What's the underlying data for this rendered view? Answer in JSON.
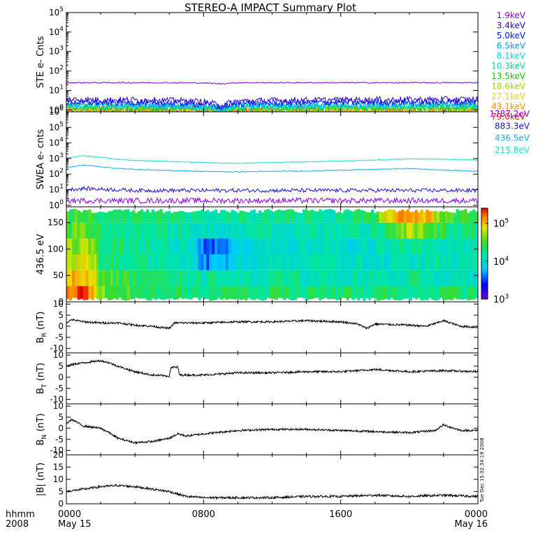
{
  "title": "STEREO-A IMPACT Summary Plot",
  "time_axis": {
    "hhmm_label": "hhmm",
    "year_label": "2008",
    "ticks": [
      {
        "t_hours": 0,
        "label": "0000",
        "date": "May 15"
      },
      {
        "t_hours": 8,
        "label": "0800",
        "date": ""
      },
      {
        "t_hours": 16,
        "label": "1600",
        "date": ""
      },
      {
        "t_hours": 24,
        "label": "0000",
        "date": "May 16"
      }
    ],
    "range_hours": [
      0,
      24
    ]
  },
  "timestamp": "Tue Dec 15 02:34:19 2008",
  "colorbar": {
    "scale": "log",
    "range": [
      1000,
      250000
    ],
    "ticks": [
      {
        "value": 100000,
        "base": "10",
        "exp": "5"
      },
      {
        "value": 10000,
        "base": "10",
        "exp": "4"
      },
      {
        "value": 1000,
        "base": "10",
        "exp": "3"
      }
    ]
  },
  "chart_data": [
    {
      "id": "ste",
      "type": "line",
      "ylabel": "STE e- Cnts",
      "yscale": "log",
      "ylim": [
        0.8,
        100000
      ],
      "yticks": [
        {
          "value": 1,
          "base": "10",
          "exp": "0"
        },
        {
          "value": 10,
          "base": "10",
          "exp": "1"
        },
        {
          "value": 100,
          "base": "10",
          "exp": "2"
        },
        {
          "value": 1000,
          "base": "10",
          "exp": "3"
        },
        {
          "value": 10000,
          "base": "10",
          "exp": "4"
        },
        {
          "value": 100000,
          "base": "10",
          "exp": "5"
        }
      ],
      "x_hours": [
        0,
        2,
        4,
        6,
        8,
        9,
        10,
        12,
        16,
        20,
        24
      ],
      "series": [
        {
          "name": "1.9keV",
          "color": "#7a00d6",
          "values": [
            25,
            25,
            25,
            25,
            24,
            22,
            25,
            25,
            25,
            25,
            25
          ]
        },
        {
          "name": "3.4keV",
          "color": "#2a00c8",
          "values": [
            3.4,
            3.2,
            3.2,
            3.0,
            2.6,
            1.6,
            2.8,
            3.0,
            3.2,
            3.3,
            3.4
          ]
        },
        {
          "name": "5.0keV",
          "color": "#0018ff",
          "values": [
            2.6,
            2.4,
            2.4,
            2.3,
            2.0,
            1.4,
            2.2,
            2.3,
            2.5,
            2.5,
            2.6
          ]
        },
        {
          "name": "6.5keV",
          "color": "#00a0ff",
          "values": [
            2.0,
            1.9,
            1.9,
            1.8,
            1.6,
            1.2,
            1.7,
            1.8,
            1.9,
            2.0,
            2.0
          ]
        },
        {
          "name": "8.1keV",
          "color": "#00d8e8",
          "values": [
            1.7,
            1.6,
            1.6,
            1.5,
            1.4,
            1.1,
            1.5,
            1.5,
            1.6,
            1.6,
            1.7
          ]
        },
        {
          "name": "10.3keV",
          "color": "#00d890",
          "values": [
            1.5,
            1.4,
            1.4,
            1.4,
            1.3,
            1.0,
            1.3,
            1.4,
            1.4,
            1.4,
            1.5
          ]
        },
        {
          "name": "13.5keV",
          "color": "#10c800",
          "values": [
            1.3,
            1.3,
            1.3,
            1.2,
            1.2,
            1.0,
            1.2,
            1.2,
            1.3,
            1.3,
            1.3
          ]
        },
        {
          "name": "18.6keV",
          "color": "#a0d800",
          "values": [
            1.2,
            1.2,
            1.2,
            1.1,
            1.1,
            1.0,
            1.1,
            1.1,
            1.2,
            1.2,
            1.2
          ]
        },
        {
          "name": "27.1keV",
          "color": "#f0d000",
          "values": [
            1.1,
            1.1,
            1.1,
            1.05,
            1.0,
            0.95,
            1.0,
            1.05,
            1.1,
            1.1,
            1.1
          ]
        },
        {
          "name": "43.1keV",
          "color": "#f08c00",
          "values": [
            1.0,
            1.0,
            1.0,
            1.0,
            0.95,
            0.9,
            0.95,
            1.0,
            1.0,
            1.0,
            1.0
          ]
        },
        {
          "name": "79.0keV",
          "color": "#e01a00",
          "values": [
            0.95,
            0.95,
            0.95,
            0.95,
            0.9,
            0.88,
            0.9,
            0.95,
            0.95,
            0.95,
            0.95
          ]
        }
      ]
    },
    {
      "id": "swea",
      "type": "line",
      "ylabel": "SWEA e- cnts",
      "yscale": "log",
      "ylim": [
        0.8,
        1000000
      ],
      "yticks": [
        {
          "value": 1,
          "base": "10",
          "exp": "0"
        },
        {
          "value": 10,
          "base": "10",
          "exp": "1"
        },
        {
          "value": 100,
          "base": "10",
          "exp": "2"
        },
        {
          "value": 1000,
          "base": "10",
          "exp": "3"
        },
        {
          "value": 10000,
          "base": "10",
          "exp": "4"
        },
        {
          "value": 100000,
          "base": "10",
          "exp": "5"
        },
        {
          "value": 1000000,
          "base": "10",
          "exp": "6"
        }
      ],
      "x_hours": [
        0,
        1,
        2,
        3,
        4,
        6,
        8,
        10,
        12,
        14,
        16,
        18,
        20,
        22,
        24
      ],
      "series": [
        {
          "name": "1787.2eV",
          "color": "#8a00e0",
          "values": [
            2,
            2,
            2,
            2,
            2,
            2,
            2,
            2,
            2,
            2,
            2,
            2,
            2,
            2,
            2
          ]
        },
        {
          "name": "883.3eV",
          "color": "#1a10d8",
          "values": [
            10,
            12,
            11,
            10,
            9,
            9,
            9,
            9,
            9,
            9,
            9,
            9,
            9,
            9,
            9
          ]
        },
        {
          "name": "436.5eV",
          "color": "#10a8ff",
          "values": [
            250,
            380,
            300,
            230,
            200,
            170,
            150,
            140,
            150,
            160,
            180,
            200,
            230,
            180,
            150
          ]
        },
        {
          "name": "215.8eV",
          "color": "#10e0c8",
          "values": [
            1100,
            1500,
            1200,
            900,
            750,
            650,
            550,
            500,
            560,
            600,
            700,
            800,
            950,
            900,
            800
          ]
        }
      ]
    },
    {
      "id": "pad",
      "type": "heatmap",
      "ylabel": "436.5 eV",
      "ylim": [
        0,
        180
      ],
      "yticks": [
        0,
        50,
        100,
        150
      ],
      "x_hours": [
        0,
        1,
        2,
        3,
        4,
        5,
        6,
        7,
        8,
        9,
        10,
        11,
        12,
        13,
        14,
        15,
        16,
        17,
        18,
        19,
        20,
        21,
        22,
        23,
        24
      ],
      "y_deg": [
        15,
        45,
        75,
        105,
        135,
        165
      ],
      "values": [
        [
          140000,
          200000,
          40000,
          30000,
          30000,
          25000,
          22000,
          20000,
          18000,
          20000,
          22000,
          20000,
          20000,
          20000,
          20000,
          20000,
          20000,
          20000,
          20000,
          20000,
          20000,
          20000,
          20000,
          20000,
          20000
        ],
        [
          90000,
          120000,
          35000,
          25000,
          25000,
          20000,
          20000,
          18000,
          15000,
          15000,
          15000,
          14000,
          14000,
          15000,
          14000,
          14000,
          13000,
          13000,
          13000,
          14000,
          15000,
          15000,
          14000,
          14000,
          14000
        ],
        [
          60000,
          80000,
          25000,
          20000,
          20000,
          15000,
          15000,
          12000,
          4000,
          5000,
          8000,
          10000,
          12000,
          12000,
          12000,
          11000,
          11000,
          11000,
          11000,
          12000,
          13000,
          14000,
          13000,
          13000,
          13000
        ],
        [
          40000,
          50000,
          22000,
          18000,
          18000,
          15000,
          14000,
          12000,
          3500,
          4000,
          7000,
          9000,
          11000,
          11000,
          11000,
          11000,
          11000,
          11000,
          11000,
          13000,
          15000,
          16000,
          14000,
          14000,
          14000
        ],
        [
          30000,
          35000,
          20000,
          18000,
          18000,
          16000,
          15000,
          14000,
          12000,
          12000,
          12000,
          13000,
          13000,
          13000,
          13000,
          13000,
          13000,
          14000,
          15000,
          30000,
          50000,
          40000,
          20000,
          18000,
          18000
        ],
        [
          28000,
          30000,
          22000,
          20000,
          20000,
          18000,
          18000,
          17000,
          16000,
          16000,
          16000,
          16000,
          16000,
          16000,
          16000,
          16000,
          16000,
          18000,
          25000,
          90000,
          150000,
          100000,
          30000,
          25000,
          25000
        ]
      ]
    },
    {
      "id": "br",
      "type": "line",
      "ylabel_main": "B",
      "ylabel_sub": "R",
      "ylabel_unit": " (nT)",
      "ylim": [
        -12,
        11
      ],
      "yticks": [
        -10,
        -5,
        0,
        5,
        10
      ],
      "x_hours": [
        0,
        0.3,
        1,
        2,
        3,
        4,
        5,
        6,
        6.3,
        7,
        8,
        10,
        12,
        14,
        16,
        17,
        17.5,
        18,
        20,
        21,
        22,
        23,
        24
      ],
      "values": [
        1.5,
        3,
        2,
        1.5,
        1.5,
        0.5,
        0,
        -1,
        1.5,
        1.5,
        1.5,
        2,
        2,
        2.5,
        2,
        1,
        -1,
        1,
        0.5,
        0,
        2.5,
        0,
        -0.5
      ]
    },
    {
      "id": "bt",
      "type": "line",
      "ylabel_main": "B",
      "ylabel_sub": "T",
      "ylabel_unit": " (nT)",
      "ylim": [
        -12,
        11
      ],
      "yticks": [
        -10,
        -5,
        0,
        5,
        10
      ],
      "x_hours": [
        0,
        0.5,
        1,
        2,
        2.5,
        3,
        4,
        5,
        6,
        6.1,
        6.5,
        6.6,
        8,
        9,
        10,
        12,
        14,
        16,
        18,
        20,
        22,
        24
      ],
      "values": [
        5,
        6,
        6.5,
        7.5,
        6.5,
        5,
        2.5,
        1,
        0.5,
        4.5,
        4.5,
        1,
        1,
        1.5,
        2,
        2,
        2.5,
        2.5,
        3.5,
        2.5,
        3,
        2.5
      ]
    },
    {
      "id": "bn",
      "type": "line",
      "ylabel_main": "B",
      "ylabel_sub": "N",
      "ylabel_unit": " (nT)",
      "ylim": [
        -12,
        11
      ],
      "yticks": [
        -10,
        -5,
        0,
        5,
        10
      ],
      "x_hours": [
        0,
        0.3,
        1,
        2,
        2.5,
        3,
        4,
        5,
        6,
        6.5,
        7,
        8,
        10,
        12,
        14,
        16,
        18,
        20,
        21.5,
        22,
        23,
        24
      ],
      "values": [
        2,
        4,
        1,
        0,
        -2,
        -4.5,
        -6.5,
        -6,
        -4.5,
        -2.5,
        -3.5,
        -2.5,
        -1,
        -0.5,
        -0.5,
        -1,
        -1.5,
        -2,
        -1,
        1.5,
        -1,
        -1
      ]
    },
    {
      "id": "btot",
      "type": "line",
      "ylabel": "|B| (nT)",
      "ylim": [
        0,
        20
      ],
      "yticks": [
        0,
        5,
        10,
        15,
        20
      ],
      "x_hours": [
        0,
        1,
        2,
        3,
        4,
        5,
        6,
        7,
        8,
        10,
        12,
        14,
        16,
        18,
        20,
        22,
        24
      ],
      "values": [
        5,
        6,
        7,
        7.5,
        7,
        6,
        5,
        3,
        2.5,
        2.5,
        2.5,
        3,
        3,
        3.5,
        3,
        3.5,
        3
      ]
    }
  ]
}
